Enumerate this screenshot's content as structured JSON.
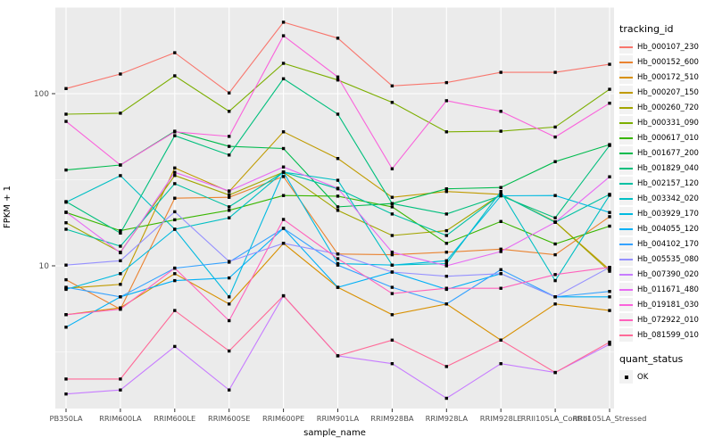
{
  "chart_data": {
    "type": "line",
    "title": "",
    "xlabel": "sample_name",
    "ylabel": "FPKM + 1",
    "y_scale": "log10",
    "ylim": [
      1.5,
      315
    ],
    "y_ticks": [
      10,
      100
    ],
    "y_tick_labels": [
      "10",
      "100"
    ],
    "y_minor_ticks": [
      3.1623,
      31.623,
      316.23
    ],
    "grid": true,
    "legend_position": "right",
    "legend_title": "tracking_id",
    "point_marker": "black-square",
    "quant_legend": {
      "title": "quant_status",
      "items": [
        {
          "label": "OK",
          "marker": "black-square"
        }
      ]
    },
    "categories": [
      "PB350LA",
      "RRIM600LA",
      "RRIM600LE",
      "RRIM600SE",
      "RRIM600PE",
      "RRIM901LA",
      "RRIM928BA",
      "RRIM928LA",
      "RRIM928LE",
      "RRII105LA_Control",
      "RRII105LA_Stressed"
    ],
    "series": [
      {
        "name": "Hb_000107_230",
        "color": "#F8766D",
        "values": [
          107,
          130,
          173,
          101,
          260,
          210,
          111,
          116,
          133,
          133,
          148
        ]
      },
      {
        "name": "Hb_000152_600",
        "color": "#EA8331",
        "values": [
          8.3,
          5.6,
          24.7,
          25,
          33,
          11.7,
          11.6,
          12,
          12.5,
          11.6,
          19.3
        ]
      },
      {
        "name": "Hb_000172_510",
        "color": "#D89000",
        "values": [
          5.2,
          5.7,
          9,
          6,
          13.5,
          7.5,
          5.2,
          6,
          3.7,
          6,
          5.5
        ]
      },
      {
        "name": "Hb_000207_150",
        "color": "#C09B00",
        "values": [
          7.4,
          7.8,
          37,
          27,
          60,
          42,
          25,
          27,
          26,
          18,
          9.5
        ]
      },
      {
        "name": "Hb_000260_720",
        "color": "#A3A500",
        "values": [
          17.8,
          12,
          33.5,
          25.8,
          35,
          21,
          15,
          16,
          26,
          18,
          9.3
        ]
      },
      {
        "name": "Hb_000331_090",
        "color": "#7CAE00",
        "values": [
          76,
          77,
          127,
          79,
          150,
          120,
          89,
          60,
          60.5,
          64,
          106
        ]
      },
      {
        "name": "Hb_000617_010",
        "color": "#39B600",
        "values": [
          20.4,
          16,
          18.5,
          21,
          25.6,
          25.4,
          22,
          13.5,
          18.1,
          13.4,
          17
        ]
      },
      {
        "name": "Hb_001677_200",
        "color": "#00BB4E",
        "values": [
          36,
          38.5,
          60.5,
          49.4,
          48,
          22,
          23,
          28,
          28.5,
          40.3,
          50.6
        ]
      },
      {
        "name": "Hb_001829_040",
        "color": "#00BF7D",
        "values": [
          23.6,
          15.5,
          57,
          44,
          122,
          76,
          23,
          20,
          25.5,
          19,
          50
        ]
      },
      {
        "name": "Hb_002157_120",
        "color": "#00C1A3",
        "values": [
          16.3,
          13,
          30,
          22,
          35,
          28,
          20,
          15,
          26,
          17.9,
          26
        ]
      },
      {
        "name": "Hb_003342_020",
        "color": "#00BFC4",
        "values": [
          23.4,
          33.4,
          16.3,
          19,
          35,
          31.4,
          10.1,
          10.3,
          27,
          8.2,
          25.7
        ]
      },
      {
        "name": "Hb_003929_170",
        "color": "#00BAE0",
        "values": [
          7.3,
          9,
          16.3,
          6.6,
          35,
          10.3,
          10.1,
          10.7,
          25.5,
          25.6,
          20.4
        ]
      },
      {
        "name": "Hb_004055_120",
        "color": "#00B0F6",
        "values": [
          4.4,
          6.6,
          8.2,
          8.5,
          16.5,
          7.5,
          9.2,
          7.3,
          9,
          6.6,
          6.6
        ]
      },
      {
        "name": "Hb_004102_170",
        "color": "#35A2FF",
        "values": [
          7.5,
          6.6,
          9.7,
          10.5,
          16.5,
          10.1,
          7.5,
          6,
          9.5,
          6.6,
          7.1
        ]
      },
      {
        "name": "Hb_005535_080",
        "color": "#9590FF",
        "values": [
          10.1,
          10.7,
          20.6,
          10.6,
          13.5,
          11.7,
          9.2,
          8.7,
          9,
          6.6,
          9.8
        ]
      },
      {
        "name": "Hb_007390_020",
        "color": "#C77CFF",
        "values": [
          1.8,
          1.9,
          3.4,
          1.9,
          6.7,
          3,
          2.7,
          1.7,
          2.7,
          2.4,
          3.5
        ]
      },
      {
        "name": "Hb_011671_480",
        "color": "#E76BF3",
        "values": [
          20.5,
          11.9,
          34.9,
          27.2,
          37.5,
          28.2,
          12,
          10,
          12.1,
          17.9,
          32.9
        ]
      },
      {
        "name": "Hb_019181_030",
        "color": "#FA62DB",
        "values": [
          69,
          38.5,
          60,
          56.5,
          217,
          125,
          36.6,
          91,
          79,
          56,
          88
        ]
      },
      {
        "name": "Hb_072922_010",
        "color": "#FF62BC",
        "values": [
          5.2,
          5.6,
          9.7,
          4.8,
          18.6,
          11,
          6.9,
          7.4,
          7.4,
          8.9,
          9.8
        ]
      },
      {
        "name": "Hb_081599_010",
        "color": "#FF6A98",
        "values": [
          2.2,
          2.2,
          5.5,
          3.2,
          6.7,
          3,
          3.7,
          2.6,
          3.7,
          2.4,
          3.6
        ]
      }
    ],
    "colors": {
      "panel_bg": "#EBEBEB",
      "grid": "#FFFFFF",
      "axis_text": "#4D4D4D",
      "tick_mark": "#333333",
      "point": "#000000",
      "legend_key_bg": "#F2F2F2"
    }
  }
}
